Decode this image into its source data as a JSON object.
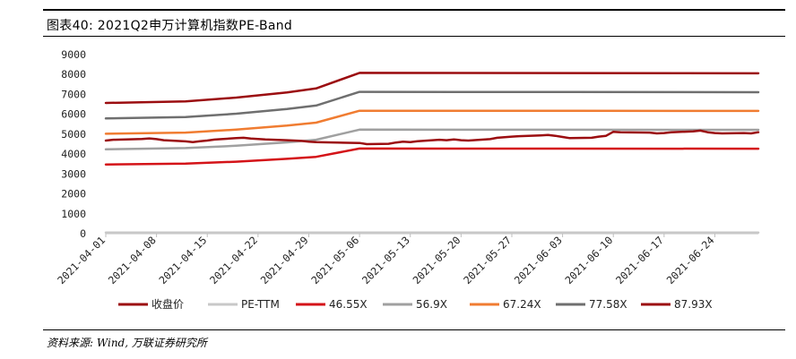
{
  "header": {
    "title": "图表40: 2021Q2申万计算机指数PE-Band"
  },
  "footer": {
    "source": "资料来源: Wind, 万联证券研究所"
  },
  "chart_data": {
    "type": "line",
    "title": "图表40: 2021Q2申万计算机指数PE-Band",
    "xlabel": "",
    "ylabel": "",
    "ylim": [
      0,
      9000
    ],
    "yticks": [
      0,
      1000,
      2000,
      3000,
      4000,
      5000,
      6000,
      7000,
      8000,
      9000
    ],
    "x_range": [
      "2021-04-01",
      "2021-06-30"
    ],
    "xticks": [
      "2021-04-01",
      "2021-04-08",
      "2021-04-15",
      "2021-04-22",
      "2021-04-29",
      "2021-05-06",
      "2021-05-13",
      "2021-05-20",
      "2021-05-27",
      "2021-06-03",
      "2021-06-10",
      "2021-06-17",
      "2021-06-24"
    ],
    "grid": false,
    "legend_position": "bottom",
    "series": [
      {
        "name": "收盘价",
        "color": "#9b0d10",
        "width": 2.5,
        "points": [
          [
            "2021-04-01",
            4680
          ],
          [
            "2021-04-02",
            4720
          ],
          [
            "2021-04-06",
            4760
          ],
          [
            "2021-04-07",
            4790
          ],
          [
            "2021-04-08",
            4750
          ],
          [
            "2021-04-09",
            4700
          ],
          [
            "2021-04-12",
            4640
          ],
          [
            "2021-04-13",
            4600
          ],
          [
            "2021-04-14",
            4650
          ],
          [
            "2021-04-15",
            4680
          ],
          [
            "2021-04-16",
            4730
          ],
          [
            "2021-04-19",
            4800
          ],
          [
            "2021-04-20",
            4820
          ],
          [
            "2021-04-21",
            4780
          ],
          [
            "2021-04-22",
            4760
          ],
          [
            "2021-04-23",
            4740
          ],
          [
            "2021-04-26",
            4700
          ],
          [
            "2021-04-27",
            4680
          ],
          [
            "2021-04-28",
            4660
          ],
          [
            "2021-04-29",
            4620
          ],
          [
            "2021-04-30",
            4600
          ],
          [
            "2021-05-06",
            4560
          ],
          [
            "2021-05-07",
            4500
          ],
          [
            "2021-05-10",
            4520
          ],
          [
            "2021-05-11",
            4580
          ],
          [
            "2021-05-12",
            4620
          ],
          [
            "2021-05-13",
            4600
          ],
          [
            "2021-05-14",
            4650
          ],
          [
            "2021-05-17",
            4720
          ],
          [
            "2021-05-18",
            4700
          ],
          [
            "2021-05-19",
            4740
          ],
          [
            "2021-05-20",
            4700
          ],
          [
            "2021-05-21",
            4680
          ],
          [
            "2021-05-24",
            4750
          ],
          [
            "2021-05-25",
            4820
          ],
          [
            "2021-05-26",
            4850
          ],
          [
            "2021-05-27",
            4880
          ],
          [
            "2021-05-28",
            4900
          ],
          [
            "2021-05-31",
            4940
          ],
          [
            "2021-06-01",
            4960
          ],
          [
            "2021-06-02",
            4920
          ],
          [
            "2021-06-03",
            4860
          ],
          [
            "2021-06-04",
            4800
          ],
          [
            "2021-06-07",
            4820
          ],
          [
            "2021-06-08",
            4880
          ],
          [
            "2021-06-09",
            4920
          ],
          [
            "2021-06-10",
            5120
          ],
          [
            "2021-06-11",
            5100
          ],
          [
            "2021-06-15",
            5080
          ],
          [
            "2021-06-16",
            5040
          ],
          [
            "2021-06-17",
            5060
          ],
          [
            "2021-06-18",
            5100
          ],
          [
            "2021-06-21",
            5140
          ],
          [
            "2021-06-22",
            5180
          ],
          [
            "2021-06-23",
            5100
          ],
          [
            "2021-06-24",
            5060
          ],
          [
            "2021-06-25",
            5040
          ],
          [
            "2021-06-28",
            5060
          ],
          [
            "2021-06-29",
            5040
          ],
          [
            "2021-06-30",
            5100
          ]
        ]
      },
      {
        "name": "PE-TTM",
        "color": "#c8c8c8",
        "width": 2.5,
        "points": [
          [
            "2021-04-01",
            55
          ],
          [
            "2021-06-30",
            55
          ]
        ]
      },
      {
        "name": "46.55X",
        "color": "#d41318",
        "width": 2.5,
        "points": [
          [
            "2021-04-01",
            3480
          ],
          [
            "2021-04-12",
            3520
          ],
          [
            "2021-04-19",
            3620
          ],
          [
            "2021-04-26",
            3760
          ],
          [
            "2021-04-30",
            3860
          ],
          [
            "2021-05-06",
            4280
          ],
          [
            "2021-06-30",
            4270
          ]
        ]
      },
      {
        "name": "56.9X",
        "color": "#a0a0a0",
        "width": 2.5,
        "points": [
          [
            "2021-04-01",
            4240
          ],
          [
            "2021-04-12",
            4300
          ],
          [
            "2021-04-19",
            4420
          ],
          [
            "2021-04-26",
            4590
          ],
          [
            "2021-04-30",
            4720
          ],
          [
            "2021-05-06",
            5230
          ],
          [
            "2021-06-30",
            5220
          ]
        ]
      },
      {
        "name": "67.24X",
        "color": "#f07c31",
        "width": 2.5,
        "points": [
          [
            "2021-04-01",
            5020
          ],
          [
            "2021-04-12",
            5080
          ],
          [
            "2021-04-19",
            5230
          ],
          [
            "2021-04-26",
            5430
          ],
          [
            "2021-04-30",
            5580
          ],
          [
            "2021-05-06",
            6180
          ],
          [
            "2021-06-30",
            6170
          ]
        ]
      },
      {
        "name": "77.58X",
        "color": "#6f6f6f",
        "width": 2.5,
        "points": [
          [
            "2021-04-01",
            5790
          ],
          [
            "2021-04-12",
            5860
          ],
          [
            "2021-04-19",
            6030
          ],
          [
            "2021-04-26",
            6270
          ],
          [
            "2021-04-30",
            6440
          ],
          [
            "2021-05-06",
            7130
          ],
          [
            "2021-06-30",
            7110
          ]
        ]
      },
      {
        "name": "87.93X",
        "color": "#9b0d10",
        "width": 2.5,
        "points": [
          [
            "2021-04-01",
            6570
          ],
          [
            "2021-04-12",
            6650
          ],
          [
            "2021-04-19",
            6840
          ],
          [
            "2021-04-26",
            7100
          ],
          [
            "2021-04-30",
            7300
          ],
          [
            "2021-05-06",
            8080
          ],
          [
            "2021-06-30",
            8060
          ]
        ]
      }
    ]
  }
}
